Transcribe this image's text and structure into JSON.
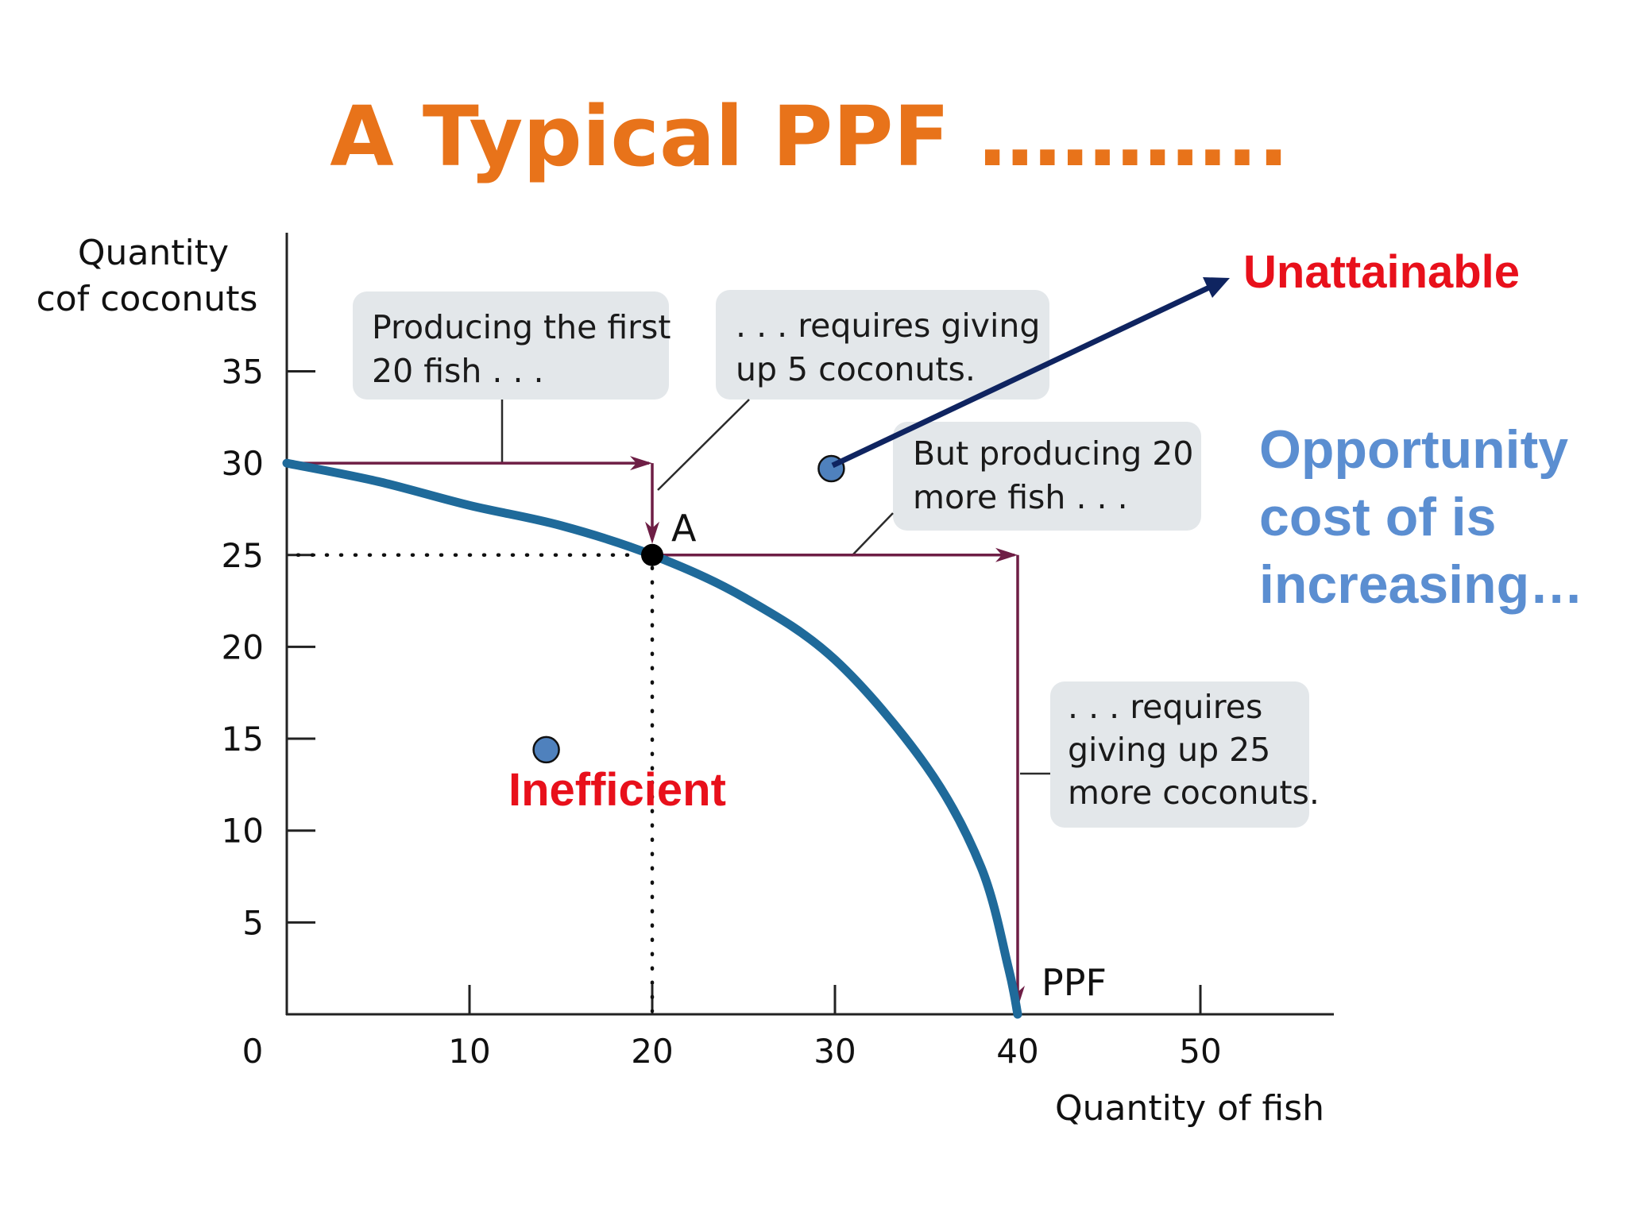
{
  "slide": {
    "title": "A Typical PPF ………..",
    "title_color": "#E8731A"
  },
  "chart_data": {
    "type": "line",
    "ylabel_lines": [
      "Quantity",
      "cof coconuts"
    ],
    "xlabel": "Quantity of fish",
    "origin_label": "0",
    "xlim": [
      0,
      57
    ],
    "ylim": [
      0,
      42
    ],
    "x_ticks": [
      10,
      20,
      30,
      40,
      50
    ],
    "x_tick_labels": [
      "10",
      "20",
      "30",
      "40",
      "50"
    ],
    "y_ticks": [
      5,
      10,
      15,
      20,
      25,
      30,
      35
    ],
    "y_tick_labels": [
      "5",
      "10",
      "15",
      "20",
      "25",
      "30",
      "35"
    ],
    "series": [
      {
        "name": "PPF",
        "color": "#1F6A9A",
        "points": [
          [
            0,
            30
          ],
          [
            5,
            29
          ],
          [
            10,
            27.7
          ],
          [
            15,
            26.6
          ],
          [
            20,
            25
          ],
          [
            25,
            22.7
          ],
          [
            30,
            19.3
          ],
          [
            35,
            13.5
          ],
          [
            38,
            8
          ],
          [
            39.5,
            2.5
          ],
          [
            40,
            0
          ]
        ]
      }
    ],
    "point_a": {
      "label": "A",
      "x": 20,
      "y": 25
    },
    "scatter_points": [
      {
        "x": 14.2,
        "y": 14.4,
        "color": "#4F81BD"
      },
      {
        "x": 29.8,
        "y": 29.7,
        "color": "#4F81BD"
      }
    ],
    "callouts": [
      {
        "lines": [
          "Producing the first",
          "20 fish . . ."
        ]
      },
      {
        "lines": [
          ". . . requires giving",
          "up 5 coconuts."
        ]
      },
      {
        "lines": [
          "But producing 20",
          "more fish . . ."
        ]
      },
      {
        "lines": [
          ". . . requires",
          "giving up 25",
          "more coconuts."
        ]
      }
    ],
    "guide_color": "#6E1E45"
  },
  "annotations": {
    "unattainable": {
      "text": "Unattainable",
      "color": "#E8101B"
    },
    "inefficient": {
      "text": "Inefficient",
      "color": "#E8101B"
    },
    "arrow_color": "#0F2460",
    "opportunity_lines": [
      "Opportunity",
      "cost of is",
      "increasing…"
    ],
    "opportunity_color": "#5B8ED1"
  }
}
